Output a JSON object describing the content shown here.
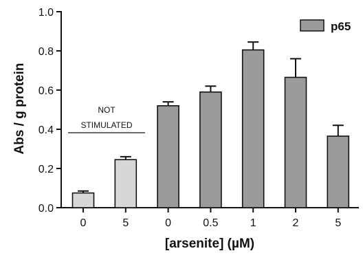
{
  "chart_data": {
    "type": "bar",
    "title": "",
    "xlabel": "[arsenite] (µM)",
    "ylabel": "Abs / g protein",
    "ylim": [
      0,
      1.0
    ],
    "yticks": [
      "0.0",
      "0.2",
      "0.4",
      "0.6",
      "0.8",
      "1.0"
    ],
    "categories": [
      "0",
      "5",
      "0",
      "0.5",
      "1",
      "2",
      "5"
    ],
    "values": [
      0.075,
      0.245,
      0.52,
      0.59,
      0.805,
      0.665,
      0.365
    ],
    "errors": [
      0.01,
      0.015,
      0.02,
      0.03,
      0.04,
      0.095,
      0.055
    ],
    "bar_colors": [
      "#d7d7d7",
      "#d7d7d7",
      "#9b9b9b",
      "#9b9b9b",
      "#9b9b9b",
      "#9b9b9b",
      "#9b9b9b"
    ],
    "legend": [
      {
        "name": "p65",
        "color": "#9b9b9b"
      }
    ],
    "legend_position": "top-right",
    "annotation": {
      "lines": [
        "NOT",
        "STIMULATED"
      ]
    },
    "grid": false
  }
}
